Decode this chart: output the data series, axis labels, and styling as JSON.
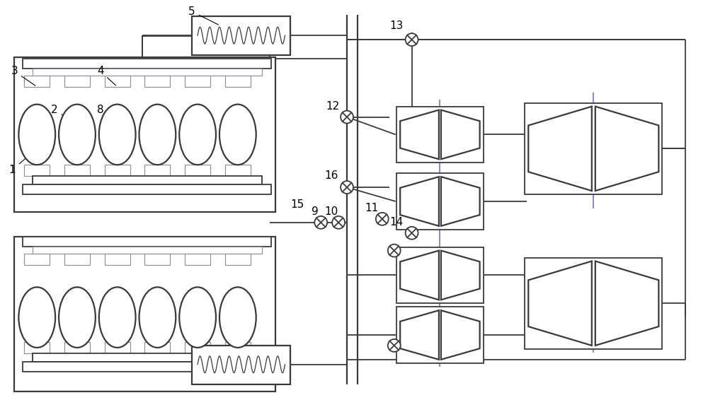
{
  "bg_color": "#ffffff",
  "line_color": "#3a3a3a",
  "gray_color": "#8a8a9a",
  "purple_color": "#9988bb",
  "green_color": "#4a8a4a",
  "fig_width": 10.0,
  "fig_height": 5.59,
  "dpi": 100
}
